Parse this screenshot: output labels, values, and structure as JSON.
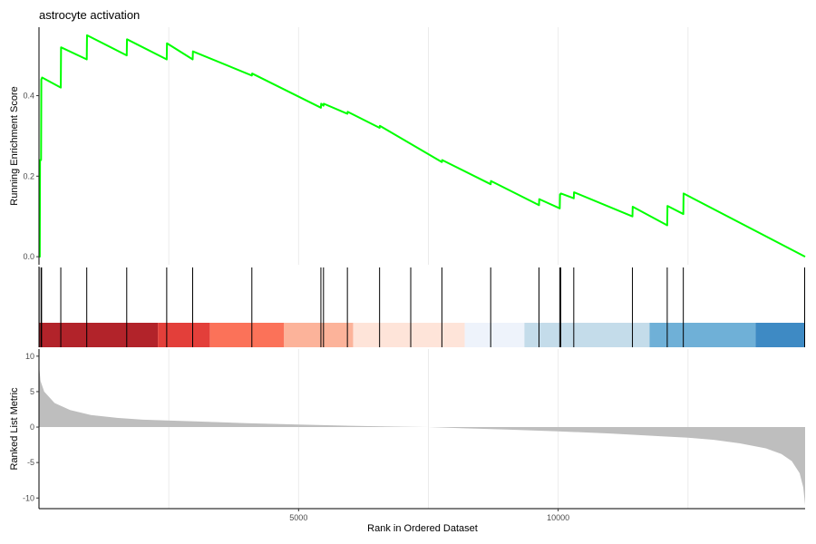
{
  "chart_data": {
    "type": "line",
    "title": "astrocyte activation",
    "total_genes": 14756,
    "x_ticks": [
      5000,
      10000
    ],
    "x_tick_labels": [
      "5000",
      "10000"
    ],
    "xlabel": "Rank in Ordered Dataset",
    "running_score": {
      "ylabel": "Running Enrichment Score",
      "ylim": [
        -0.02,
        0.57
      ],
      "y_ticks": [
        0.0,
        0.2,
        0.4
      ],
      "y_tick_labels": [
        "0.0",
        "0.2",
        "0.4"
      ],
      "line_color": "#00ff00",
      "points": [
        [
          0,
          0.0
        ],
        [
          15,
          0.0
        ],
        [
          20,
          0.24
        ],
        [
          40,
          0.24
        ],
        [
          45,
          0.44
        ],
        [
          60,
          0.445
        ],
        [
          420,
          0.42
        ],
        [
          425,
          0.52
        ],
        [
          920,
          0.49
        ],
        [
          925,
          0.55
        ],
        [
          1690,
          0.5
        ],
        [
          1695,
          0.54
        ],
        [
          2460,
          0.49
        ],
        [
          2465,
          0.53
        ],
        [
          2960,
          0.49
        ],
        [
          2965,
          0.51
        ],
        [
          4100,
          0.45
        ],
        [
          4105,
          0.455
        ],
        [
          5430,
          0.37
        ],
        [
          5435,
          0.38
        ],
        [
          5480,
          0.375
        ],
        [
          5485,
          0.38
        ],
        [
          5940,
          0.355
        ],
        [
          5945,
          0.36
        ],
        [
          6560,
          0.32
        ],
        [
          6565,
          0.325
        ],
        [
          7760,
          0.235
        ],
        [
          7765,
          0.24
        ],
        [
          8700,
          0.18
        ],
        [
          8705,
          0.188
        ],
        [
          9630,
          0.128
        ],
        [
          9635,
          0.143
        ],
        [
          10030,
          0.12
        ],
        [
          10035,
          0.155
        ],
        [
          10050,
          0.155
        ],
        [
          10055,
          0.157
        ],
        [
          10300,
          0.145
        ],
        [
          10305,
          0.16
        ],
        [
          11430,
          0.1
        ],
        [
          11435,
          0.124
        ],
        [
          12100,
          0.078
        ],
        [
          12105,
          0.126
        ],
        [
          12410,
          0.106
        ],
        [
          12415,
          0.157
        ],
        [
          14756,
          0.0
        ]
      ]
    },
    "gene_hits": [
      3,
      40,
      50,
      420,
      920,
      1690,
      2460,
      2960,
      4100,
      5430,
      5480,
      5940,
      6560,
      7160,
      7760,
      8700,
      9630,
      10030,
      10050,
      10300,
      11430,
      12100,
      12410,
      14756
    ],
    "ranked_color_bands": [
      {
        "start": 0,
        "end": 2290,
        "color": "#b2232a"
      },
      {
        "start": 2290,
        "end": 3290,
        "color": "#e33f3a"
      },
      {
        "start": 3290,
        "end": 4720,
        "color": "#fb7259"
      },
      {
        "start": 4720,
        "end": 6050,
        "color": "#fcb39a"
      },
      {
        "start": 6050,
        "end": 8200,
        "color": "#fee4d9"
      },
      {
        "start": 8200,
        "end": 9350,
        "color": "#eef3fb"
      },
      {
        "start": 9350,
        "end": 11760,
        "color": "#c4dcea"
      },
      {
        "start": 11760,
        "end": 13800,
        "color": "#6fb0d7"
      },
      {
        "start": 13800,
        "end": 14756,
        "color": "#3e8ac4"
      }
    ],
    "ranked_metric": {
      "ylabel": "Ranked List Metric",
      "ylim": [
        -11.5,
        11
      ],
      "y_ticks": [
        10,
        5,
        0,
        -5,
        -10
      ],
      "y_tick_labels": [
        "10",
        "5",
        "0",
        "-5",
        "-10"
      ],
      "fill_color": "#bebebe",
      "points": [
        [
          0,
          10.5
        ],
        [
          10,
          8.0
        ],
        [
          30,
          6.5
        ],
        [
          100,
          5.0
        ],
        [
          300,
          3.4
        ],
        [
          600,
          2.4
        ],
        [
          1000,
          1.7
        ],
        [
          1500,
          1.3
        ],
        [
          2000,
          1.05
        ],
        [
          3000,
          0.8
        ],
        [
          4000,
          0.55
        ],
        [
          5000,
          0.35
        ],
        [
          6000,
          0.18
        ],
        [
          7000,
          0.05
        ],
        [
          7500,
          0.0
        ],
        [
          8000,
          -0.12
        ],
        [
          9000,
          -0.35
        ],
        [
          10000,
          -0.6
        ],
        [
          11000,
          -0.9
        ],
        [
          12000,
          -1.3
        ],
        [
          12500,
          -1.5
        ],
        [
          13000,
          -1.8
        ],
        [
          13500,
          -2.3
        ],
        [
          14000,
          -3.0
        ],
        [
          14300,
          -3.8
        ],
        [
          14500,
          -4.8
        ],
        [
          14650,
          -6.5
        ],
        [
          14720,
          -8.5
        ],
        [
          14756,
          -11.0
        ]
      ]
    }
  }
}
